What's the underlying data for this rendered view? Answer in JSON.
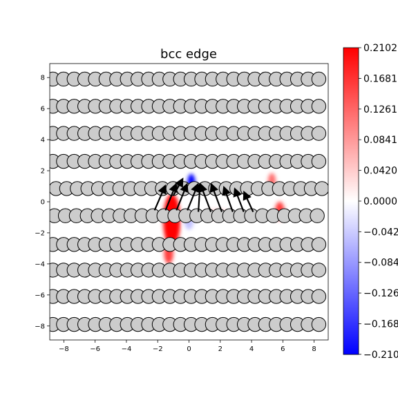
{
  "chart_data": {
    "type": "heatmap",
    "title": "bcc edge",
    "xlabel": "",
    "ylabel": "",
    "xlim": [
      -8.9,
      8.9
    ],
    "ylim": [
      -8.9,
      8.9
    ],
    "xticks": [
      -8,
      -6,
      -4,
      -2,
      0,
      2,
      4,
      6,
      8
    ],
    "yticks": [
      -8,
      -6,
      -4,
      -2,
      0,
      2,
      4,
      6,
      8
    ],
    "tick_labels_x": [
      "−8",
      "−6",
      "−4",
      "−2",
      "0",
      "2",
      "4",
      "6",
      "8"
    ],
    "tick_labels_y": [
      "−8",
      "−6",
      "−4",
      "−2",
      "0",
      "2",
      "4",
      "6",
      "8"
    ],
    "grid": false,
    "colormap": "bwr",
    "colors": {
      "negative": "#0000ff",
      "zero": "#ffffff",
      "positive": "#ff0000",
      "atom_fill": "#cccccc",
      "atom_edge": "#000000"
    },
    "colorbar": {
      "range": [
        -0.2102,
        0.2102
      ],
      "ticks": [
        0.2102,
        0.1681,
        0.1261,
        0.0841,
        0.042,
        0.0,
        -0.042,
        -0.084,
        -0.126,
        -0.168,
        -0.21
      ],
      "tick_labels": [
        "0.2102",
        "0.1681",
        "0.1261",
        "0.0841",
        "0.0420",
        "0.0000",
        "−0.042",
        "−0.084",
        "−0.126",
        "−0.168",
        "−0.210"
      ]
    },
    "atom_radius": 0.45,
    "atom_rows": [
      {
        "y": 7.9,
        "x_start": -8.7,
        "dx": 0.68,
        "count": 26
      },
      {
        "y": 6.15,
        "x_start": -8.7,
        "dx": 0.68,
        "count": 26
      },
      {
        "y": 4.4,
        "x_start": -8.7,
        "dx": 0.68,
        "count": 26
      },
      {
        "y": 2.6,
        "x_start": -8.7,
        "dx": 0.68,
        "count": 26
      },
      {
        "y": 0.85,
        "x_start": -8.5,
        "dx": 0.68,
        "count": 26
      },
      {
        "y": -0.9,
        "x_start": -8.6,
        "dx": 0.7,
        "count": 25
      },
      {
        "y": -2.75,
        "x_start": -8.7,
        "dx": 0.68,
        "count": 26
      },
      {
        "y": -4.4,
        "x_start": -8.7,
        "dx": 0.68,
        "count": 26
      },
      {
        "y": -6.1,
        "x_start": -8.7,
        "dx": 0.68,
        "count": 26
      },
      {
        "y": -7.9,
        "x_start": -8.7,
        "dx": 0.68,
        "count": 26
      }
    ],
    "density_blobs": [
      {
        "x": -1.1,
        "y": -1.2,
        "sx": 0.55,
        "sy": 1.7,
        "value": 0.21
      },
      {
        "x": -1.3,
        "y": -3.3,
        "sx": 0.3,
        "sy": 0.7,
        "value": 0.16
      },
      {
        "x": 0.15,
        "y": 1.2,
        "sx": 0.25,
        "sy": 0.6,
        "value": -0.21
      },
      {
        "x": 5.3,
        "y": 1.3,
        "sx": 0.25,
        "sy": 0.55,
        "value": 0.12
      },
      {
        "x": 5.8,
        "y": -0.6,
        "sx": 0.3,
        "sy": 0.6,
        "value": 0.16
      },
      {
        "x": 1.8,
        "y": -0.8,
        "sx": 0.9,
        "sy": 0.35,
        "value": 0.03
      },
      {
        "x": 0.0,
        "y": -1.2,
        "sx": 0.3,
        "sy": 0.6,
        "value": -0.05
      }
    ],
    "displacement_arrows": [
      {
        "x": -2.2,
        "y": -0.55,
        "dx": 0.6,
        "dy": 1.4
      },
      {
        "x": -1.5,
        "y": -0.55,
        "dx": 0.6,
        "dy": 1.5
      },
      {
        "x": -0.8,
        "y": -0.55,
        "dx": 0.6,
        "dy": 1.5
      },
      {
        "x": -0.1,
        "y": -0.55,
        "dx": 0.6,
        "dy": 1.5
      },
      {
        "x": 0.6,
        "y": -0.65,
        "dx": 0.1,
        "dy": 1.6
      },
      {
        "x": 1.4,
        "y": -0.65,
        "dx": -0.6,
        "dy": 1.6
      },
      {
        "x": 2.1,
        "y": -0.65,
        "dx": -0.6,
        "dy": 1.6
      },
      {
        "x": 2.8,
        "y": -0.65,
        "dx": -0.5,
        "dy": 1.4
      },
      {
        "x": 3.5,
        "y": -0.65,
        "dx": -0.5,
        "dy": 1.3
      },
      {
        "x": 4.1,
        "y": -0.65,
        "dx": -0.5,
        "dy": 1.1
      },
      {
        "x": -1.0,
        "y": 0.4,
        "dx": 0.5,
        "dy": 0.9
      }
    ]
  }
}
